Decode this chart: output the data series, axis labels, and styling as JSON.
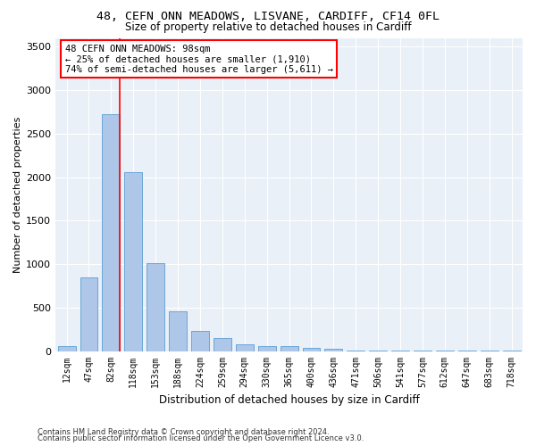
{
  "title1": "48, CEFN ONN MEADOWS, LISVANE, CARDIFF, CF14 0FL",
  "title2": "Size of property relative to detached houses in Cardiff",
  "xlabel": "Distribution of detached houses by size in Cardiff",
  "ylabel": "Number of detached properties",
  "categories": [
    "12sqm",
    "47sqm",
    "82sqm",
    "118sqm",
    "153sqm",
    "188sqm",
    "224sqm",
    "259sqm",
    "294sqm",
    "330sqm",
    "365sqm",
    "400sqm",
    "436sqm",
    "471sqm",
    "506sqm",
    "541sqm",
    "577sqm",
    "612sqm",
    "647sqm",
    "683sqm",
    "718sqm"
  ],
  "values": [
    60,
    850,
    2720,
    2060,
    1010,
    460,
    230,
    145,
    80,
    60,
    55,
    35,
    25,
    10,
    10,
    5,
    5,
    3,
    2,
    2,
    1
  ],
  "bar_color": "#aec6e8",
  "bar_edge_color": "#5a9fd4",
  "highlight_line_color": "red",
  "highlight_bar_idx": 2,
  "annotation_line1": "48 CEFN ONN MEADOWS: 98sqm",
  "annotation_line2": "← 25% of detached houses are smaller (1,910)",
  "annotation_line3": "74% of semi-detached houses are larger (5,611) →",
  "annotation_box_color": "white",
  "annotation_box_edge": "red",
  "ylim": [
    0,
    3600
  ],
  "yticks": [
    0,
    500,
    1000,
    1500,
    2000,
    2500,
    3000,
    3500
  ],
  "bg_color": "#eaf0f8",
  "footer1": "Contains HM Land Registry data © Crown copyright and database right 2024.",
  "footer2": "Contains public sector information licensed under the Open Government Licence v3.0."
}
